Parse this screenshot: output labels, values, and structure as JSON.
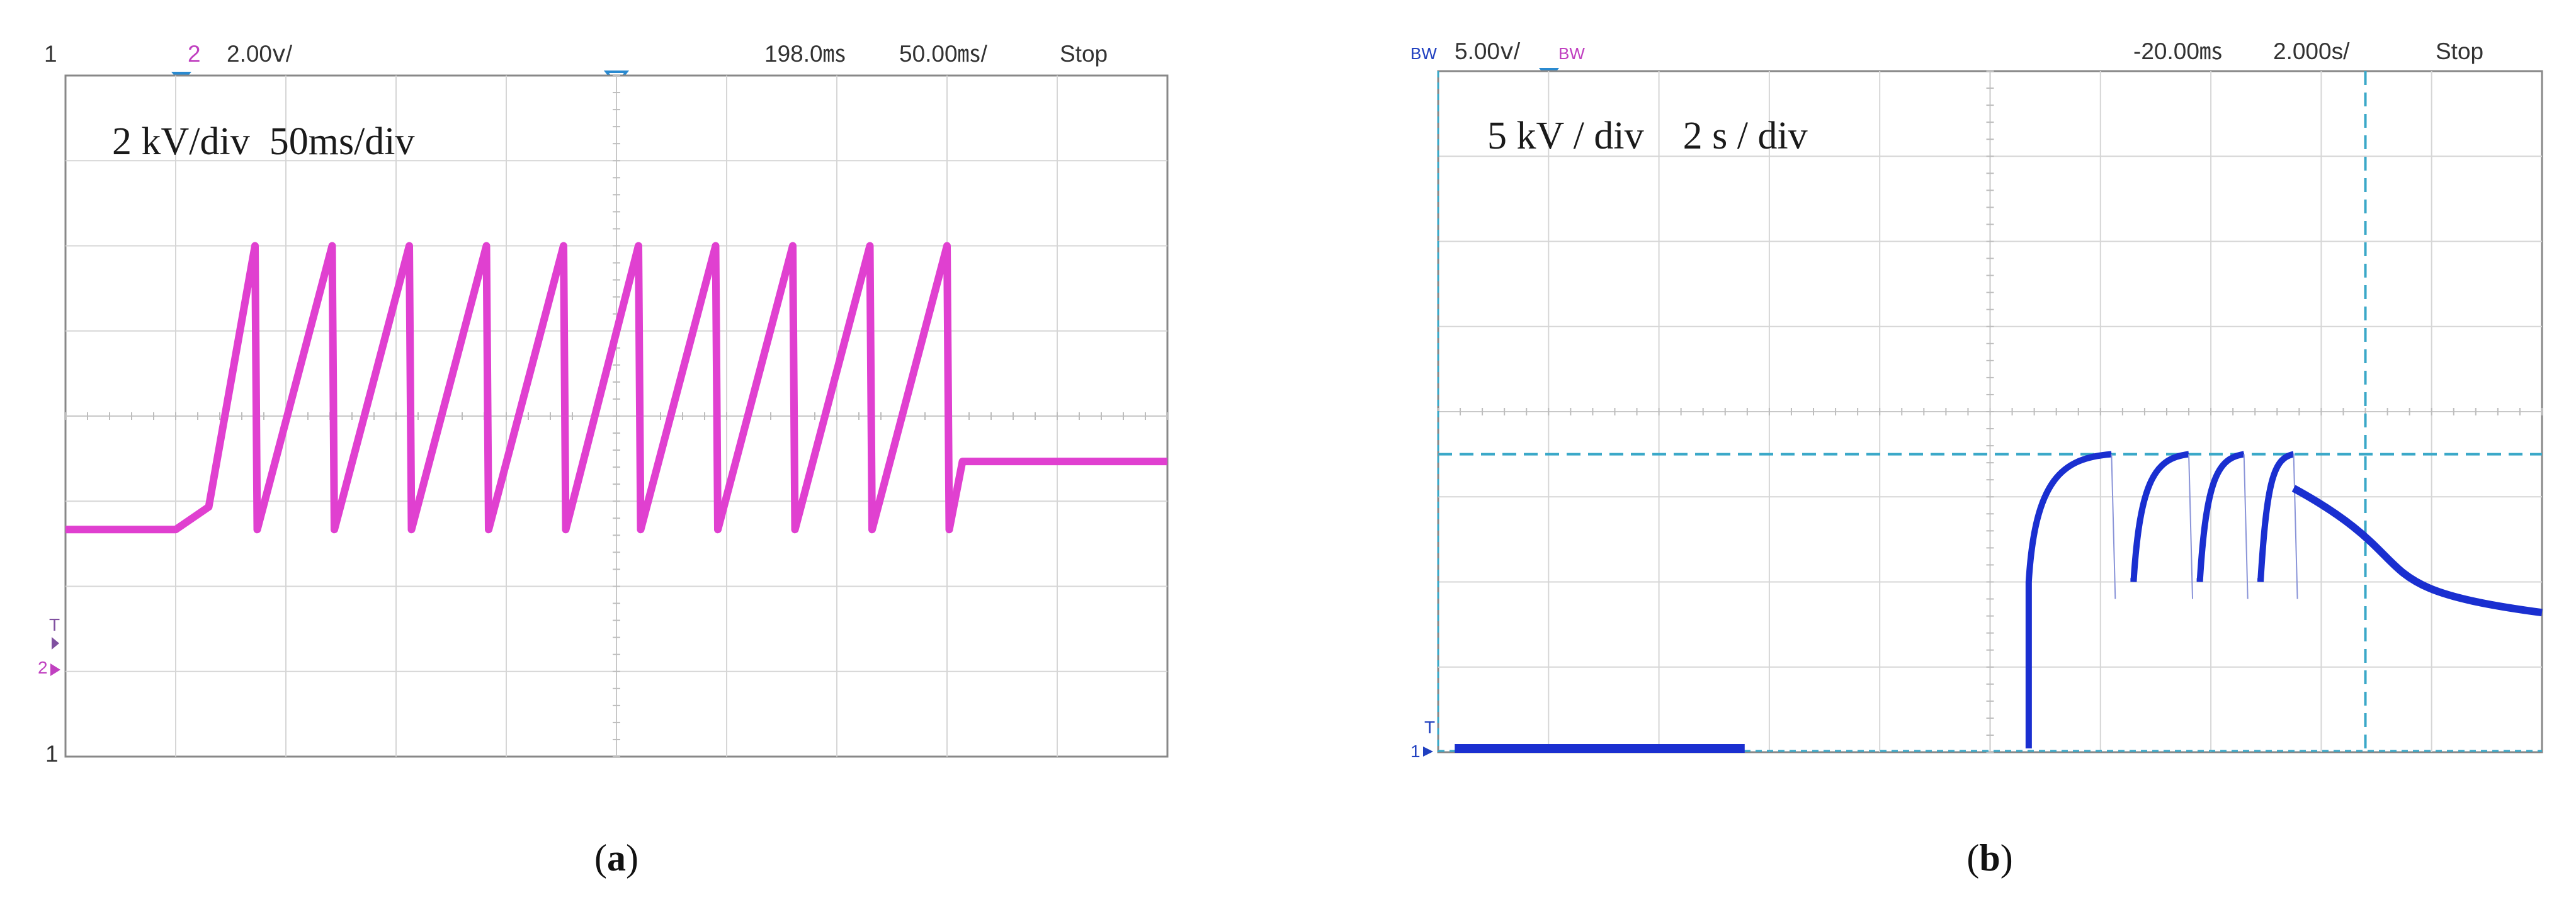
{
  "chart_data": [
    {
      "type": "line",
      "panel_label": "a",
      "channel_marker": "1",
      "channel_number": "2",
      "header_scale": "2.00ⅴ/",
      "header_delay": "198.0㎳",
      "header_timebase": "50.00㎳/",
      "header_status": "Stop",
      "trigger_label": "T",
      "ground_label": "2",
      "axis_bottom_label": "1",
      "annotation": "2 kV/div  50ms/div",
      "trace_color": "#e040d0",
      "xlim": [
        -250,
        250
      ],
      "ylim": [
        -4,
        8
      ],
      "x": [
        -250,
        -200,
        -185,
        -164,
        -163,
        -129,
        -128,
        -94,
        -93,
        -59,
        -58,
        -24,
        -23,
        10,
        11,
        45,
        46,
        80,
        81,
        115,
        116,
        150,
        151,
        157,
        250
      ],
      "values": [
        0,
        0,
        0.4,
        5.0,
        0,
        5.0,
        0,
        5.0,
        0,
        5.0,
        0,
        5.0,
        0,
        5.0,
        0,
        5.0,
        0,
        5.0,
        0,
        5.0,
        0,
        5.0,
        0,
        1.2,
        1.2
      ]
    },
    {
      "type": "line",
      "panel_label": "b",
      "header_bw1": "BW",
      "header_scale": "5.00ⅴ/",
      "header_bw2": "BW",
      "header_delay": "-20.00㎳",
      "header_timebase": "2.000s/",
      "header_status": "Stop",
      "trigger_label": "T",
      "ground_label": "1",
      "annotation": "5 kV / div    2 s / div",
      "trace_color": "#1a2fd0",
      "cursor_color": "#3aa8c8",
      "cursor_level": 17.5,
      "cursor_time": 16.8,
      "xlim": [
        0,
        20
      ],
      "ylim": [
        0,
        40
      ],
      "x": [
        0.3,
        3.5,
        6.4,
        9.0,
        11.0
      ],
      "values": [
        0,
        0,
        0,
        0,
        0
      ]
    }
  ]
}
